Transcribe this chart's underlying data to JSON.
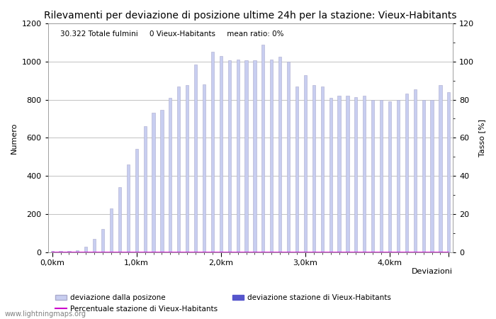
{
  "title": "Rilevamenti per deviazione di posizione ultime 24h per la stazione: Vieux-Habitants",
  "subtitle": "30.322 Totale fulmini     0 Vieux-Habitants     mean ratio: 0%",
  "xlabel": "Deviazioni",
  "ylabel_left": "Numero",
  "ylabel_right": "Tasso [%]",
  "watermark": "www.lightningmaps.org",
  "bar_values": [
    5,
    5,
    5,
    10,
    30,
    70,
    120,
    230,
    340,
    460,
    540,
    660,
    730,
    745,
    810,
    870,
    875,
    985,
    880,
    1050,
    1030,
    1005,
    1010,
    1005,
    1005,
    1090,
    1010,
    1025,
    1000,
    870,
    930,
    875,
    870,
    810,
    820,
    820,
    815,
    820,
    800,
    800,
    790,
    800,
    830,
    855,
    800,
    800,
    875,
    840
  ],
  "station_bar_values": [
    0,
    0,
    0,
    0,
    0,
    0,
    0,
    0,
    0,
    0,
    0,
    0,
    0,
    0,
    0,
    0,
    0,
    0,
    0,
    0,
    0,
    0,
    0,
    0,
    0,
    0,
    0,
    0,
    0,
    0,
    0,
    0,
    0,
    0,
    0,
    0,
    0,
    0,
    0,
    0,
    0,
    0,
    0,
    0,
    0,
    0,
    0,
    0
  ],
  "ratio_values": [
    0,
    0,
    0,
    0,
    0,
    0,
    0,
    0,
    0,
    0,
    0,
    0,
    0,
    0,
    0,
    0,
    0,
    0,
    0,
    0,
    0,
    0,
    0,
    0,
    0,
    0,
    0,
    0,
    0,
    0,
    0,
    0,
    0,
    0,
    0,
    0,
    0,
    0,
    0,
    0,
    0,
    0,
    0,
    0,
    0,
    0,
    0,
    0
  ],
  "num_bars": 48,
  "ylim_left": [
    0,
    1200
  ],
  "ylim_right": [
    0,
    120
  ],
  "yticks_left": [
    0,
    200,
    400,
    600,
    800,
    1000,
    1200
  ],
  "yticks_right": [
    0,
    20,
    40,
    60,
    80,
    100,
    120
  ],
  "bar_color_light": "#c8cef0",
  "bar_color_dark": "#5555cc",
  "bar_edge_color": "#aaaacc",
  "line_color": "#cc00cc",
  "background_color": "#ffffff",
  "plot_bg_color": "#ffffff",
  "grid_color": "#aaaaaa",
  "title_fontsize": 10,
  "label_fontsize": 8,
  "tick_fontsize": 8,
  "subtitle_fontsize": 7.5
}
